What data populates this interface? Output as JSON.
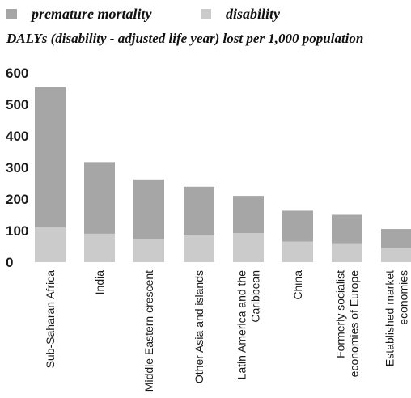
{
  "legend": {
    "items": [
      {
        "label": "premature mortality",
        "color": "#a6a6a6"
      },
      {
        "label": "disability",
        "color": "#cbcbcb"
      }
    ]
  },
  "subtitle": "DALYs (disability - adjusted life year) lost per 1,000 population",
  "chart_data": {
    "type": "bar",
    "stacked": true,
    "categories": [
      [
        "Sub-Saharan Africa"
      ],
      [
        "India"
      ],
      [
        "Middle Eastern crescent"
      ],
      [
        "Other Asia and islands"
      ],
      [
        "Latin America and the",
        "Caribbean"
      ],
      [
        "China"
      ],
      [
        "Formerly socialist",
        "economies of Europe"
      ],
      [
        "Established market",
        "economies"
      ]
    ],
    "series": [
      {
        "name": "disability",
        "color": "#cbcbcb",
        "values": [
          110,
          90,
          72,
          87,
          92,
          65,
          57,
          45
        ]
      },
      {
        "name": "premature mortality",
        "color": "#a6a6a6",
        "values": [
          445,
          227,
          190,
          152,
          118,
          98,
          93,
          60
        ]
      }
    ],
    "totals": [
      555,
      317,
      262,
      239,
      210,
      163,
      150,
      105
    ],
    "yticks": [
      0,
      100,
      200,
      300,
      400,
      500,
      600
    ],
    "ylim": [
      0,
      600
    ],
    "grid": false,
    "legend_position": "top-left"
  }
}
